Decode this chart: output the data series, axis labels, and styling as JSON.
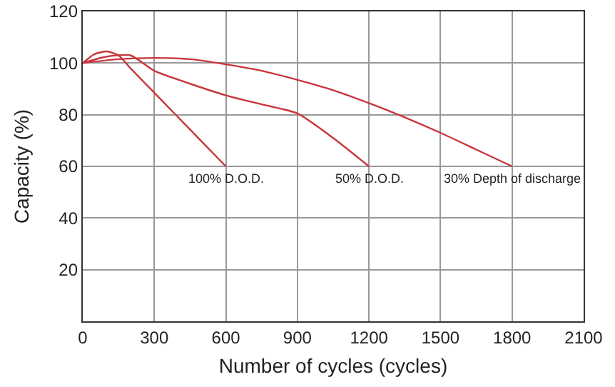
{
  "chart_data": {
    "type": "line",
    "xlabel": "Number of cycles (cycles)",
    "ylabel": "Capacity (%)",
    "xlim": [
      0,
      2100
    ],
    "xticks": [
      0,
      300,
      600,
      900,
      1200,
      1500,
      1800,
      2100
    ],
    "ylim": [
      0,
      120
    ],
    "yticks": [
      20,
      40,
      60,
      80,
      100,
      120
    ],
    "grid": true,
    "marker": "none",
    "line_style": "solid",
    "series": [
      {
        "color": "#c8363c",
        "x": [
          0,
          50,
          100,
          150,
          200,
          300,
          400,
          500,
          600
        ],
        "values": [
          100,
          103.5,
          104.5,
          103,
          98,
          88.5,
          79,
          69.5,
          60
        ]
      },
      {
        "color": "#c8363c",
        "x": [
          0,
          100,
          200,
          300,
          450,
          600,
          750,
          900,
          1050,
          1200
        ],
        "values": [
          100,
          102.5,
          103,
          97,
          92,
          87.5,
          84,
          80.5,
          71,
          60
        ]
      },
      {
        "color": "#c8363c",
        "x": [
          0,
          150,
          300,
          450,
          600,
          750,
          900,
          1050,
          1200,
          1350,
          1500,
          1650,
          1800
        ],
        "values": [
          100,
          101.5,
          102,
          101.5,
          99.5,
          97,
          93.5,
          89.5,
          84.5,
          79,
          73,
          66.5,
          60
        ]
      }
    ],
    "annotations": [
      {
        "text": "100% D.O.D.",
        "x": 600,
        "y": 60
      },
      {
        "text": "50% D.O.D.",
        "x": 1200,
        "y": 60
      },
      {
        "text": "30% Depth of discharge",
        "x": 1800,
        "y": 60
      }
    ]
  }
}
